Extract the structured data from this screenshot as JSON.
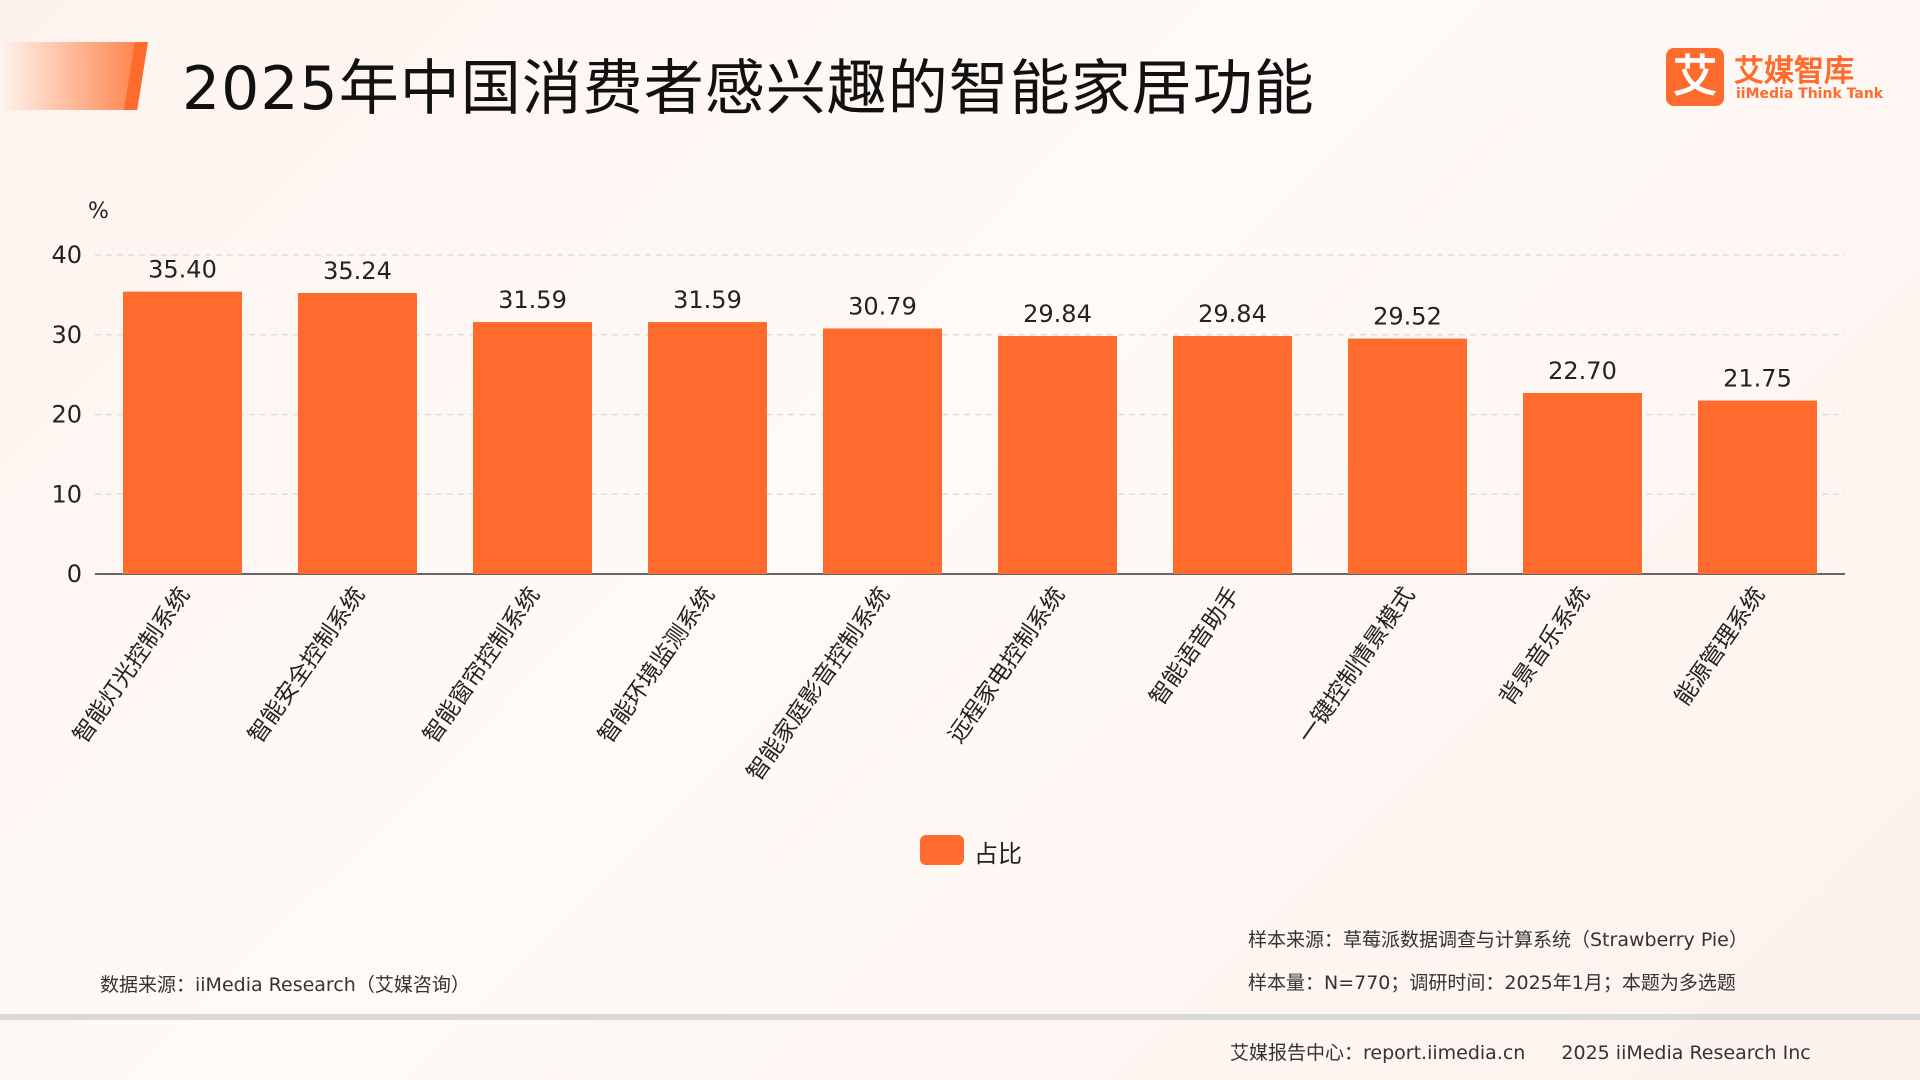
{
  "header": {
    "title": "2025年中国消费者感兴趣的智能家居功能"
  },
  "logo": {
    "mark": "艾",
    "name_cn": "艾媒智库",
    "name_en": "iiMedia Think Tank"
  },
  "colors": {
    "accent": "#ff6b2c",
    "bar": "#ff6b2c",
    "grid": "#dcdce6",
    "axis": "#666666"
  },
  "chart_data": {
    "type": "bar",
    "unit_label": "%",
    "categories": [
      "智能灯光控制系统",
      "智能安全控制系统",
      "智能窗帘控制系统",
      "智能环境监测系统",
      "智能家庭影音控制系统",
      "远程家电控制系统",
      "智能语音助手",
      "一键控制情景模式",
      "背景音乐系统",
      "能源管理系统"
    ],
    "series": [
      {
        "name": "占比",
        "values": [
          35.4,
          35.24,
          31.59,
          31.59,
          30.79,
          29.84,
          29.84,
          29.52,
          22.7,
          21.75
        ]
      }
    ],
    "value_labels": [
      "35.40",
      "35.24",
      "31.59",
      "31.59",
      "30.79",
      "29.84",
      "29.84",
      "29.52",
      "22.70",
      "21.75"
    ],
    "yticks": [
      0,
      10,
      20,
      30,
      40
    ],
    "ylim": [
      0,
      40
    ],
    "grid": true,
    "legend_position": "bottom-center"
  },
  "legend": {
    "label": "占比"
  },
  "sources": {
    "left": "数据来源：iiMedia Research（艾媒咨询）",
    "right_line1": "样本来源：草莓派数据调查与计算系统（Strawberry Pie）",
    "right_line2": "样本量：N=770；调研时间：2025年1月；本题为多选题"
  },
  "footer": {
    "center": "艾媒报告中心：report.iimedia.cn",
    "copyright": "2025 iiMedia Research Inc"
  }
}
